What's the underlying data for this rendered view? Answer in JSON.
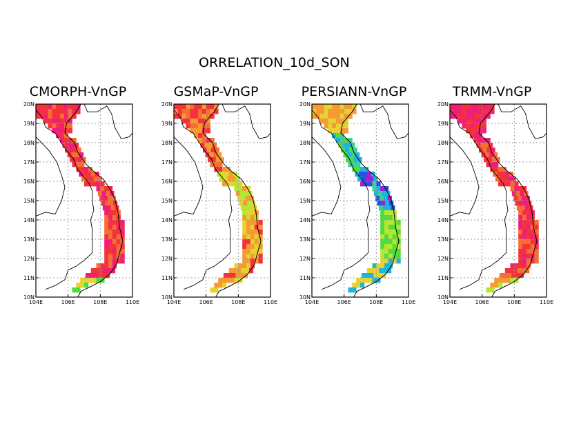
{
  "title": "ORRELATION_10d_SON",
  "lat_ticks": [
    "20N",
    "19N",
    "18N",
    "17N",
    "16N",
    "15N",
    "14N",
    "13N",
    "12N",
    "11N",
    "10N"
  ],
  "lon_ticks": [
    "104E",
    "106E",
    "108E",
    "110E"
  ],
  "colors": {
    "red": "#f5323c",
    "pink": "#f01e78",
    "orange": "#f59b32",
    "orange_red": "#f56e32",
    "yellow": "#e6d232",
    "yellow_green": "#b4e632",
    "green": "#50dc3c",
    "cyan_green": "#3cd296",
    "cyan": "#1eb4dc",
    "blue": "#2850e6",
    "purple": "#a01ed2"
  },
  "panels": [
    {
      "title": "CMORPH-VnGP",
      "scheme": "cmorph"
    },
    {
      "title": "GSMaP-VnGP",
      "scheme": "gsmap"
    },
    {
      "title": "PERSIANN-VnGP",
      "scheme": "persiann"
    },
    {
      "title": "TRMM-VnGP",
      "scheme": "trmm"
    }
  ]
}
